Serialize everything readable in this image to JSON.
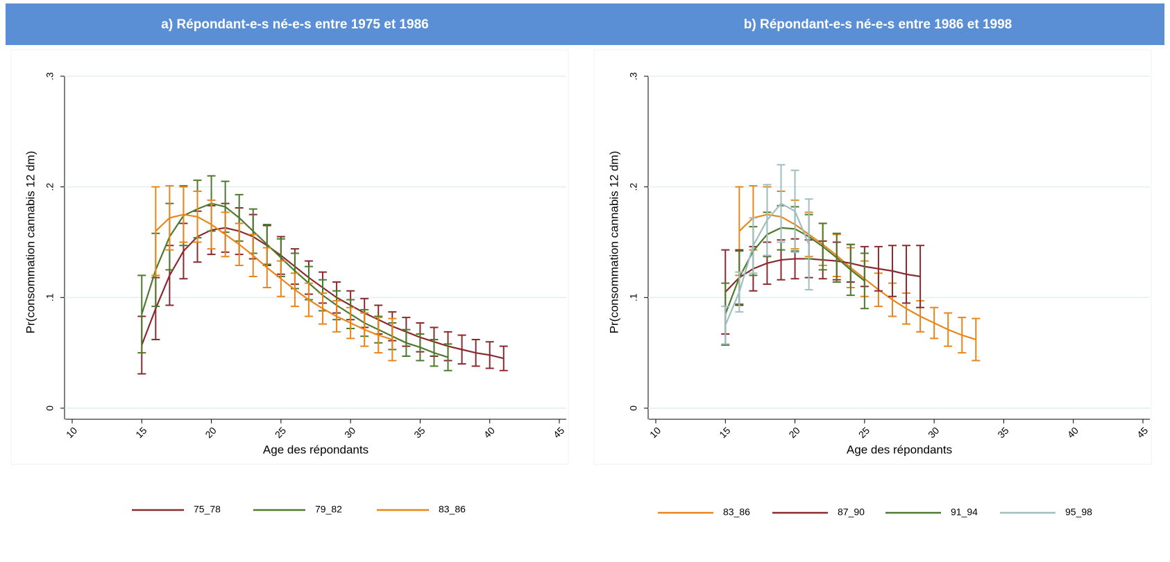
{
  "chart_data": [
    {
      "type": "line",
      "title": "a) Répondant-e-s né-e-s entre 1975 et 1986",
      "x_label": "Age des répondants",
      "y_label": "Pr(consommation cannabis 12 dm)",
      "xlim": [
        9.5,
        45.5
      ],
      "ylim": [
        -0.01,
        0.3
      ],
      "xticks": [
        10,
        15,
        20,
        25,
        30,
        35,
        40,
        45
      ],
      "yticks": [
        0,
        {
          "value": 0.1,
          "label": ".1"
        },
        {
          "value": 0.2,
          "label": ".2"
        },
        {
          "value": 0.3,
          "label": ".3"
        }
      ],
      "grid": true,
      "series": [
        {
          "name": "75_78",
          "color": "#8b2a2e",
          "x": [
            15,
            16,
            17,
            18,
            19,
            20,
            21,
            22,
            23,
            24,
            25,
            26,
            27,
            28,
            29,
            30,
            31,
            32,
            33,
            34,
            35,
            36,
            37,
            38,
            39,
            40,
            41
          ],
          "values": [
            0.057,
            0.09,
            0.12,
            0.142,
            0.155,
            0.161,
            0.163,
            0.16,
            0.155,
            0.147,
            0.138,
            0.128,
            0.118,
            0.109,
            0.1,
            0.093,
            0.086,
            0.08,
            0.074,
            0.069,
            0.064,
            0.06,
            0.056,
            0.053,
            0.05,
            0.048,
            0.045
          ],
          "errors": [
            0.026,
            0.028,
            0.027,
            0.025,
            0.023,
            0.022,
            0.022,
            0.021,
            0.02,
            0.018,
            0.017,
            0.016,
            0.015,
            0.014,
            0.014,
            0.013,
            0.013,
            0.013,
            0.013,
            0.013,
            0.013,
            0.013,
            0.013,
            0.013,
            0.012,
            0.012,
            0.011
          ]
        },
        {
          "name": "79_82",
          "color": "#4d7a2c",
          "x": [
            15,
            16,
            17,
            18,
            19,
            20,
            21,
            22,
            23,
            24,
            25,
            26,
            27,
            28,
            29,
            30,
            31,
            32,
            33,
            34,
            35,
            36,
            37
          ],
          "values": [
            0.085,
            0.125,
            0.155,
            0.174,
            0.18,
            0.185,
            0.182,
            0.172,
            0.16,
            0.148,
            0.136,
            0.124,
            0.113,
            0.102,
            0.093,
            0.085,
            0.077,
            0.071,
            0.065,
            0.059,
            0.055,
            0.05,
            0.046
          ],
          "errors": [
            0.035,
            0.033,
            0.03,
            0.027,
            0.026,
            0.025,
            0.023,
            0.021,
            0.02,
            0.018,
            0.017,
            0.016,
            0.015,
            0.014,
            0.013,
            0.013,
            0.012,
            0.012,
            0.012,
            0.012,
            0.012,
            0.012,
            0.012
          ]
        },
        {
          "name": "83_86",
          "color": "#e8861a",
          "x": [
            16,
            17,
            18,
            19,
            20,
            21,
            22,
            23,
            24,
            25,
            26,
            27,
            28,
            29,
            30,
            31,
            32,
            33
          ],
          "values": [
            0.16,
            0.172,
            0.175,
            0.173,
            0.166,
            0.157,
            0.148,
            0.138,
            0.127,
            0.117,
            0.107,
            0.098,
            0.09,
            0.083,
            0.077,
            0.071,
            0.066,
            0.062
          ],
          "errors": [
            0.04,
            0.029,
            0.025,
            0.023,
            0.022,
            0.02,
            0.019,
            0.019,
            0.018,
            0.016,
            0.015,
            0.015,
            0.014,
            0.014,
            0.014,
            0.015,
            0.016,
            0.019
          ]
        }
      ]
    },
    {
      "type": "line",
      "title": "b) Répondant-e-s né-e-s entre 1986 et 1998",
      "x_label": "Age des répondants",
      "y_label": "Pr(consommation cannabis 12 dm)",
      "xlim": [
        9.5,
        45.5
      ],
      "ylim": [
        -0.01,
        0.3
      ],
      "xticks": [
        10,
        15,
        20,
        25,
        30,
        35,
        40,
        45
      ],
      "yticks": [
        0,
        {
          "value": 0.1,
          "label": ".1"
        },
        {
          "value": 0.2,
          "label": ".2"
        },
        {
          "value": 0.3,
          "label": ".3"
        }
      ],
      "grid": true,
      "series": [
        {
          "name": "83_86",
          "color": "#e8861a",
          "x": [
            16,
            17,
            18,
            19,
            20,
            21,
            22,
            23,
            24,
            25,
            26,
            27,
            28,
            29,
            30,
            31,
            32,
            33
          ],
          "values": [
            0.16,
            0.172,
            0.175,
            0.173,
            0.166,
            0.157,
            0.148,
            0.138,
            0.127,
            0.117,
            0.107,
            0.098,
            0.09,
            0.083,
            0.077,
            0.071,
            0.066,
            0.062
          ],
          "errors": [
            0.04,
            0.029,
            0.025,
            0.023,
            0.022,
            0.02,
            0.019,
            0.019,
            0.018,
            0.016,
            0.015,
            0.015,
            0.014,
            0.014,
            0.014,
            0.015,
            0.016,
            0.019
          ]
        },
        {
          "name": "87_90",
          "color": "#8b2a2e",
          "x": [
            15,
            16,
            17,
            18,
            19,
            20,
            21,
            22,
            23,
            24,
            25,
            26,
            27,
            28,
            29
          ],
          "values": [
            0.105,
            0.118,
            0.126,
            0.131,
            0.134,
            0.135,
            0.135,
            0.134,
            0.133,
            0.131,
            0.128,
            0.126,
            0.124,
            0.121,
            0.119
          ],
          "errors": [
            0.038,
            0.025,
            0.02,
            0.019,
            0.018,
            0.018,
            0.017,
            0.017,
            0.017,
            0.017,
            0.018,
            0.02,
            0.023,
            0.026,
            0.028
          ]
        },
        {
          "name": "91_94",
          "color": "#4d7a2c",
          "x": [
            15,
            16,
            17,
            18,
            19,
            20,
            21,
            22,
            23,
            24,
            25
          ],
          "values": [
            0.085,
            0.118,
            0.142,
            0.157,
            0.163,
            0.162,
            0.155,
            0.146,
            0.136,
            0.125,
            0.115
          ],
          "errors": [
            0.028,
            0.024,
            0.022,
            0.02,
            0.02,
            0.02,
            0.02,
            0.021,
            0.022,
            0.023,
            0.025
          ]
        },
        {
          "name": "95_98",
          "color": "#9fbfbe",
          "x": [
            15,
            16,
            17,
            18,
            19,
            20,
            21
          ],
          "values": [
            0.075,
            0.105,
            0.147,
            0.17,
            0.185,
            0.178,
            0.148
          ],
          "errors": [
            0.017,
            0.018,
            0.025,
            0.032,
            0.035,
            0.037,
            0.041
          ]
        }
      ]
    }
  ]
}
